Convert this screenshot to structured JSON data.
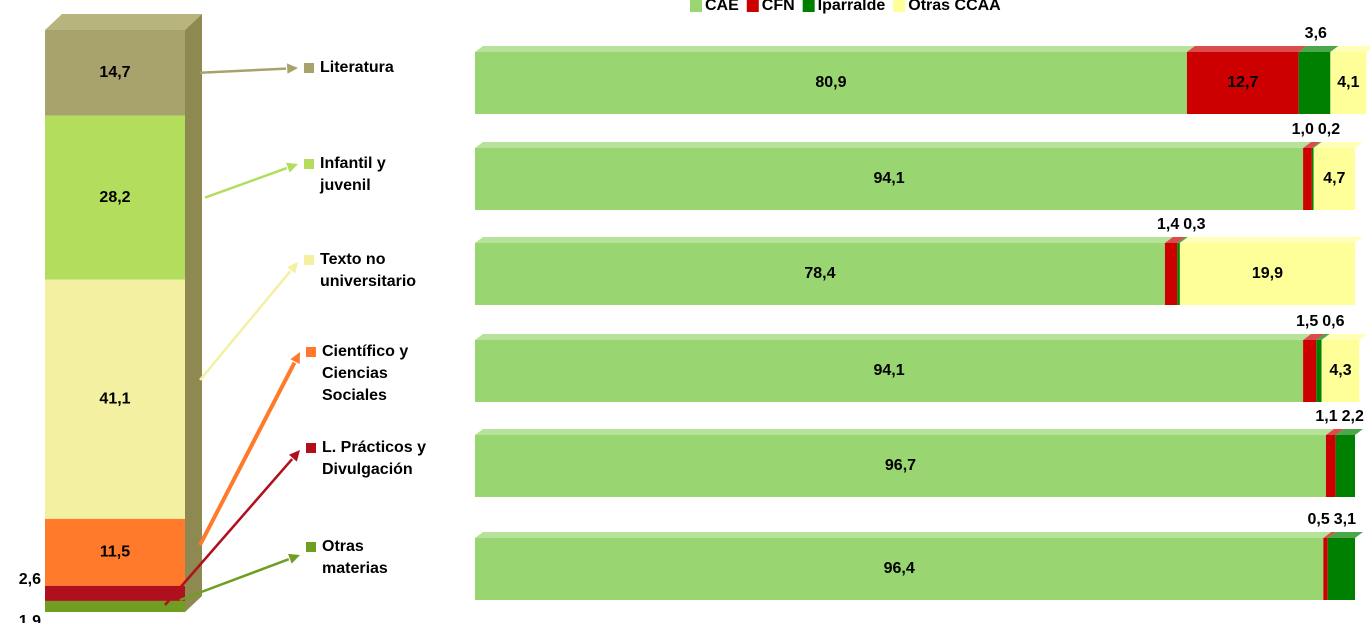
{
  "chart_data": [
    {
      "type": "bar",
      "stacked": true,
      "orientation": "vertical",
      "values": [
        14.7,
        28.2,
        41.1,
        11.5,
        2.6,
        1.9
      ],
      "value_labels": [
        "14,7",
        "28,2",
        "41,1",
        "11,5",
        "2,6",
        "1,9"
      ],
      "colors": [
        "#a8a36c",
        "#b3dd5c",
        "#f4f0a2",
        "#ff7a2a",
        "#b0101e",
        "#6f9e22"
      ],
      "ylim": [
        0,
        100
      ]
    },
    {
      "type": "bar",
      "stacked": true,
      "orientation": "horizontal",
      "categories": [
        "Literatura",
        "Infantil y juvenil",
        "Texto no universitario",
        "Científico y Ciencias Sociales",
        "L. Prácticos y Divulgación",
        "Otras materias"
      ],
      "series": [
        {
          "name": "CAE",
          "color": "#99d570",
          "values": [
            80.9,
            94.1,
            78.4,
            94.1,
            96.7,
            96.4
          ],
          "value_labels": [
            "80,9",
            "94,1",
            "78,4",
            "94,1",
            "96,7",
            "96,4"
          ]
        },
        {
          "name": "CFN",
          "color": "#cc0000",
          "values": [
            12.7,
            1.0,
            1.4,
            1.5,
            1.1,
            0.5
          ],
          "value_labels": [
            "12,7",
            "1,0",
            "1,4",
            "1,5",
            "1,1",
            "0,5"
          ]
        },
        {
          "name": "Iparralde",
          "color": "#008000",
          "values": [
            3.6,
            0.2,
            0.3,
            0.6,
            2.2,
            3.1
          ],
          "value_labels": [
            "3,6",
            "0,2",
            "0,3",
            "0,6",
            "2,2",
            "3,1"
          ]
        },
        {
          "name": "Otras CCAA",
          "color": "#ffff99",
          "values": [
            4.1,
            4.7,
            19.9,
            4.3,
            null,
            null
          ],
          "value_labels": [
            "4,1",
            "4,7",
            "19,9",
            "4,3",
            null,
            null
          ]
        }
      ],
      "xlim": [
        0,
        100
      ],
      "legend": "top"
    }
  ]
}
